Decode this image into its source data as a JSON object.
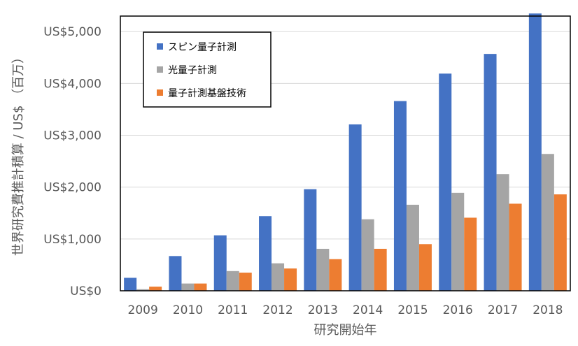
{
  "chart_data": {
    "type": "bar",
    "title": "",
    "xlabel": "研究開始年",
    "ylabel": "世界研究費推計積算 / US$ （百万）",
    "categories": [
      "2009",
      "2010",
      "2011",
      "2012",
      "2013",
      "2014",
      "2015",
      "2016",
      "2017",
      "2018"
    ],
    "series": [
      {
        "name": "スピン量子計測",
        "color": "#4472C4",
        "values": [
          250,
          670,
          1070,
          1440,
          1960,
          3210,
          3660,
          4190,
          4570,
          5350
        ]
      },
      {
        "name": "光量子計測",
        "color": "#A5A5A5",
        "values": [
          30,
          140,
          380,
          530,
          810,
          1380,
          1660,
          1890,
          2250,
          2640
        ]
      },
      {
        "name": "量子計測基盤技術",
        "color": "#ED7D31",
        "values": [
          80,
          140,
          350,
          430,
          610,
          810,
          900,
          1410,
          1680,
          1860
        ]
      }
    ],
    "ylim": [
      0,
      5300
    ],
    "yticks": [
      0,
      1000,
      2000,
      3000,
      4000,
      5000
    ],
    "ytick_labels": [
      "US$0",
      "US$1,000",
      "US$2,000",
      "US$3,000",
      "US$4,000",
      "US$5,000"
    ],
    "grid": true,
    "legend_position": "top-left"
  }
}
